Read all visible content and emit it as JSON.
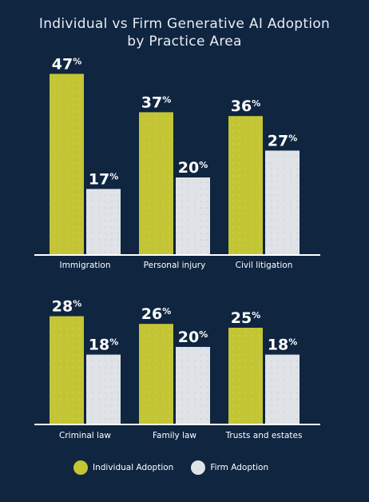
{
  "title_line1": "Individual vs Firm Generative AI Adoption",
  "title_line2": "by Practice Area",
  "colors": {
    "background": "#0f2540",
    "individual": "#c3c534",
    "firm": "#dfe3e8",
    "baseline": "#ffffff"
  },
  "legend": {
    "individual": "Individual Adoption",
    "firm": "Firm Adoption"
  },
  "chart_data": [
    {
      "type": "bar",
      "categories": [
        "Immigration",
        "Personal injury",
        "Civil litigation"
      ],
      "series": [
        {
          "name": "Individual Adoption",
          "values": [
            47,
            37,
            36
          ]
        },
        {
          "name": "Firm Adoption",
          "values": [
            17,
            20,
            27
          ]
        }
      ],
      "value_suffix": "%",
      "ylim": [
        0,
        50
      ],
      "grid": false
    },
    {
      "type": "bar",
      "categories": [
        "Criminal law",
        "Family law",
        "Trusts and estates"
      ],
      "series": [
        {
          "name": "Individual Adoption",
          "values": [
            28,
            26,
            25
          ]
        },
        {
          "name": "Firm Adoption",
          "values": [
            18,
            20,
            18
          ]
        }
      ],
      "value_suffix": "%",
      "ylim": [
        0,
        50
      ],
      "grid": false
    }
  ]
}
